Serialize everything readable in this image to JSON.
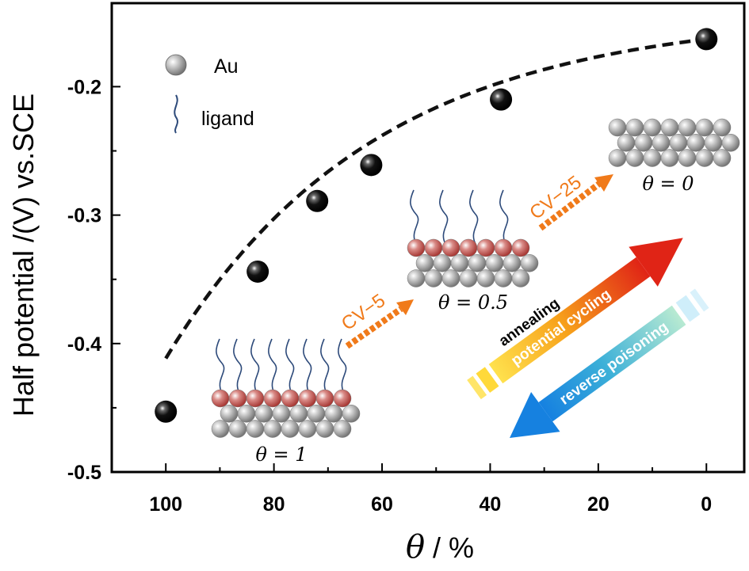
{
  "chart_data": {
    "type": "scatter",
    "xlabel_symbol": "θ",
    "xlabel_unit": " / %",
    "ylabel": "Half potential /(V) vs.SCE",
    "xlim": [
      110,
      -7
    ],
    "ylim": [
      -0.5,
      -0.135
    ],
    "xticks": [
      100,
      80,
      60,
      40,
      20,
      0
    ],
    "xtick_labels": [
      "100",
      "80",
      "60",
      "40",
      "20",
      "0"
    ],
    "yticks": [
      -0.2,
      -0.3,
      -0.4,
      -0.5
    ],
    "ytick_labels": [
      "-0.2",
      "-0.3",
      "-0.4",
      "-0.5"
    ],
    "grid": false,
    "series": [
      {
        "x": [
          100,
          83,
          72,
          62,
          38,
          0
        ],
        "y": [
          -0.453,
          -0.344,
          -0.289,
          -0.261,
          -0.21,
          -0.163
        ]
      }
    ],
    "fit_line": "dashed"
  },
  "legend": {
    "au_label": "Au",
    "ligand_label": "ligand"
  },
  "annotations": {
    "theta_1": "θ = 1",
    "theta_05": "θ = 0.5",
    "theta_0": "θ = 0",
    "cv5": "CV−5",
    "cv25": "CV−25",
    "annealing": "annealing",
    "potential_cycling": "potential cycling",
    "reverse_poisoning": "reverse poisoning"
  },
  "colors": {
    "marker": "#000000",
    "ligand": "#2d4a7a",
    "au_atom": "#a8a8a8",
    "ligand_atom": "#c0504d",
    "orange": "#f07a1a",
    "blue": "#1a8fd8"
  }
}
